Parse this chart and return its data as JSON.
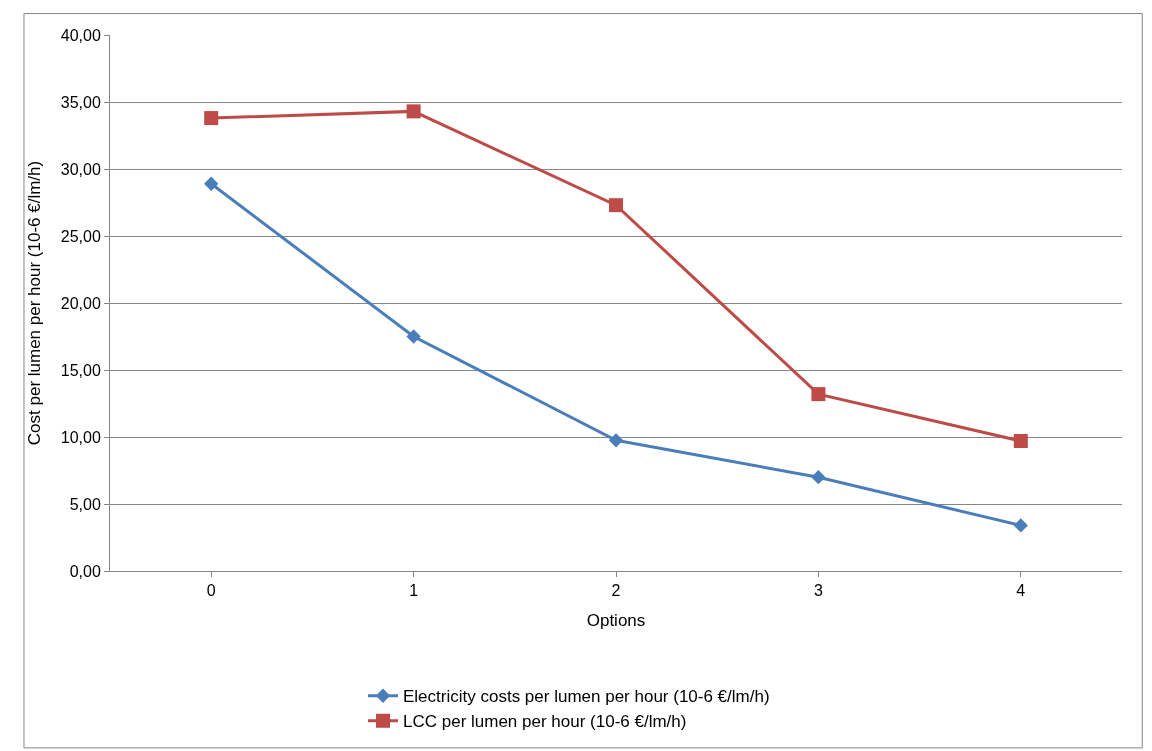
{
  "chart_data": {
    "type": "line",
    "xlabel": "Options",
    "ylabel": "Cost per lumen per hour (10-6 €/lm/h)",
    "categories": [
      "0",
      "1",
      "2",
      "3",
      "4"
    ],
    "series": [
      {
        "name": "Electricity costs per lumen per hour (10-6 €/lm/h)",
        "color": "#4a7ebb",
        "marker": "diamond",
        "values": [
          28.9,
          17.5,
          9.75,
          7.0,
          3.4
        ]
      },
      {
        "name": "LCC per lumen per hour (10-6 €/lm/h)",
        "color": "#be4b48",
        "marker": "square",
        "values": [
          33.8,
          34.3,
          27.3,
          13.2,
          9.7
        ]
      }
    ],
    "ylim": [
      0,
      40
    ],
    "yticks": [
      {
        "value": 0,
        "label": "0,00"
      },
      {
        "value": 5,
        "label": "5,00"
      },
      {
        "value": 10,
        "label": "10,00"
      },
      {
        "value": 15,
        "label": "15,00"
      },
      {
        "value": 20,
        "label": "20,00"
      },
      {
        "value": 25,
        "label": "25,00"
      },
      {
        "value": 30,
        "label": "30,00"
      },
      {
        "value": 35,
        "label": "35,00"
      },
      {
        "value": 40,
        "label": "40,00"
      }
    ],
    "grid": "y",
    "legend": "bottom",
    "line_style": "solid"
  }
}
